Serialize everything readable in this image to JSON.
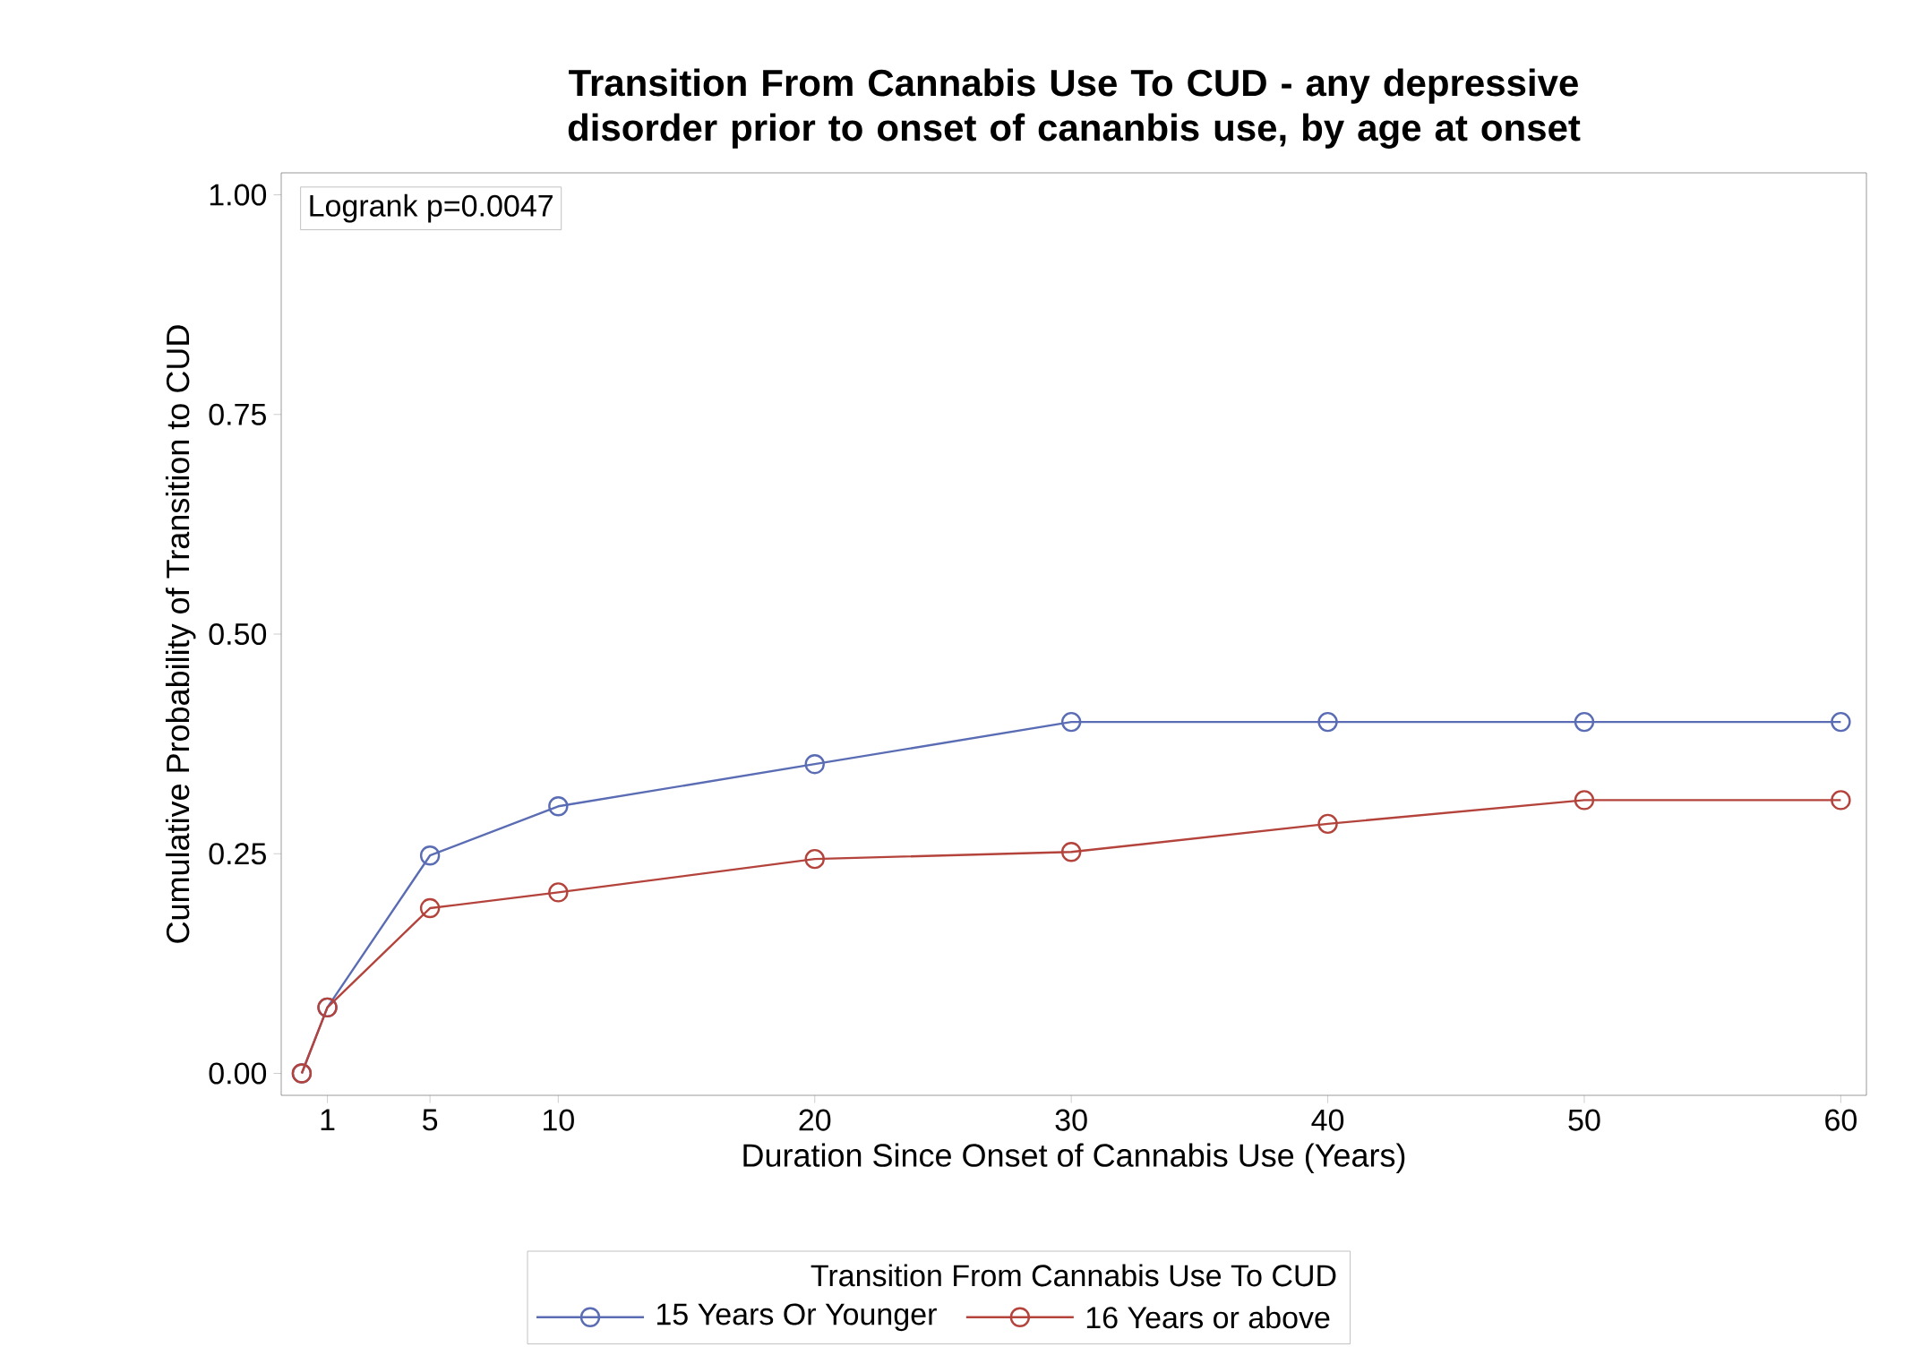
{
  "chart_data": {
    "type": "line",
    "title": "Transition From Cannabis Use To CUD - any depressive disorder prior to onset of cananbis use, by age at onset",
    "xlabel": "Duration Since Onset of Cannabis Use (Years)",
    "ylabel": "Cumulative Probability of Transition to CUD",
    "legend_title": "Transition From Cannabis Use To CUD",
    "annotations": [
      "Logrank p=0.0047"
    ],
    "x": [
      0,
      1,
      5,
      10,
      20,
      30,
      40,
      50,
      60
    ],
    "series": [
      {
        "name": "15 Years Or Younger",
        "color": "#5a6cb4",
        "values": [
          0,
          0.075,
          0.248,
          0.304,
          0.352,
          0.4,
          0.4,
          0.4,
          0.4
        ]
      },
      {
        "name": "16 Years or above",
        "color": "#b4433c",
        "values": [
          0,
          0.075,
          0.188,
          0.206,
          0.244,
          0.252,
          0.284,
          0.311,
          0.311
        ]
      }
    ],
    "xlim": [
      -0.8,
      61
    ],
    "ylim": [
      -0.025,
      1.025
    ],
    "xticks": [
      1,
      5,
      10,
      20,
      30,
      40,
      50,
      60
    ],
    "yticks": [
      {
        "value": 0,
        "label": "0.00"
      },
      {
        "value": 0.25,
        "label": "0.25"
      },
      {
        "value": 0.5,
        "label": "0.50"
      },
      {
        "value": 0.75,
        "label": "0.75"
      },
      {
        "value": 1,
        "label": "1.00"
      }
    ],
    "marker": "circle",
    "line_style": "solid",
    "grid": false,
    "legend": "bottom"
  }
}
